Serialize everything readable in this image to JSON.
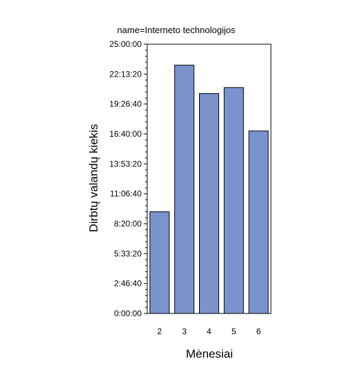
{
  "chart_data": {
    "type": "bar",
    "title": "name=Interneto technologijos",
    "xlabel": "Mėnesiai",
    "ylabel": "Dirbtų valandų kiekis",
    "categories": [
      "2",
      "3",
      "4",
      "5",
      "6"
    ],
    "values_seconds": [
      34000,
      83000,
      73500,
      75500,
      61000
    ],
    "ylim_seconds": [
      0,
      90000
    ],
    "y_ticks_seconds": [
      0,
      10000,
      20000,
      30000,
      40000,
      50000,
      60000,
      70000,
      80000,
      90000
    ],
    "y_tick_labels": [
      "0:00:00",
      "2:46:40",
      "5:33:20",
      "8:20:00",
      "11:06:40",
      "13:53:20",
      "16:40:00",
      "19:26:40",
      "22:13:20",
      "25:00:00"
    ],
    "bar_color": "#7b93cc",
    "bar_edge_color": "#000000",
    "grid": false,
    "legend": "none"
  }
}
